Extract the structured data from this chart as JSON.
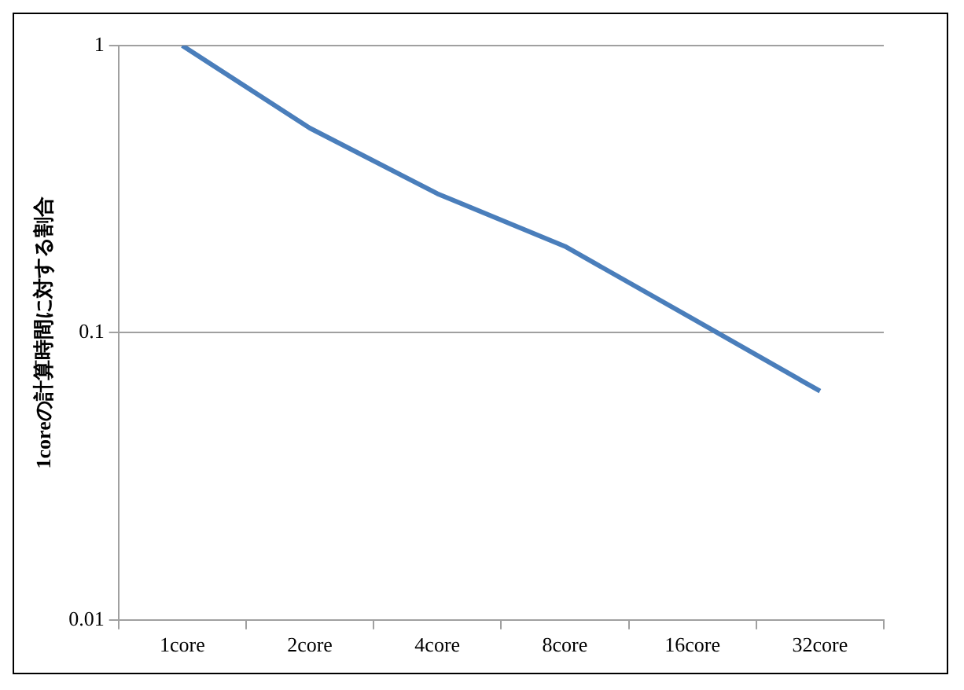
{
  "chart_data": {
    "type": "line",
    "ylabel": "1coreの計算時間に対する割合",
    "categories": [
      "1core",
      "2core",
      "4core",
      "8core",
      "16core",
      "32core"
    ],
    "series": [
      {
        "color": "#4a7ebb",
        "values": [
          1,
          0.516,
          0.305,
          0.2,
          0.112,
          0.0626
        ]
      }
    ],
    "log": true,
    "ylim": [
      0.01,
      1
    ],
    "yticks": [
      0.01,
      0.1,
      1
    ],
    "grid": "y",
    "legend": false,
    "marker": "none",
    "line_style": "solid"
  }
}
